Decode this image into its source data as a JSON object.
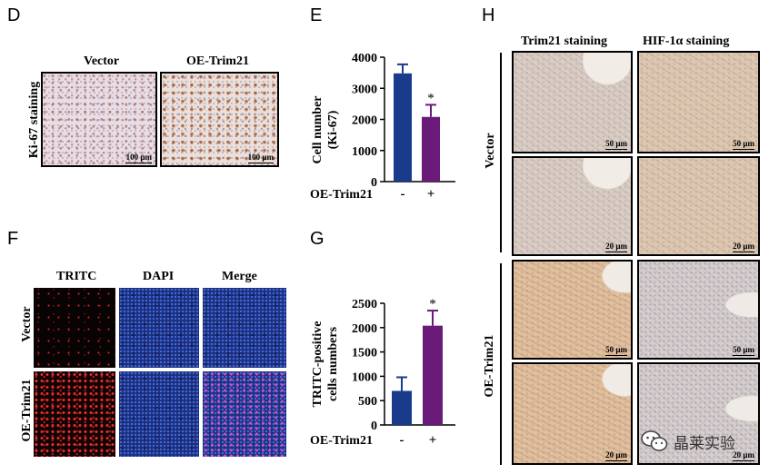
{
  "panels": {
    "D": "D",
    "E": "E",
    "F": "F",
    "G": "G",
    "H": "H"
  },
  "panel_d": {
    "row_label": "Ki-67 staining",
    "columns": [
      "Vector",
      "OE-Trim21"
    ],
    "scale_bar": "100 μm"
  },
  "panel_f": {
    "columns": [
      "TRITC",
      "DAPI",
      "Merge"
    ],
    "rows": [
      "Vector",
      "OE-Trim21"
    ]
  },
  "panel_h": {
    "columns": [
      "Trim21 staining",
      "HIF-1α staining"
    ],
    "groups": [
      "Vector",
      "OE-Trim21"
    ],
    "scale_bars": [
      "50 μm",
      "20 μm",
      "50 μm",
      "20 μm"
    ]
  },
  "watermark": {
    "text": "晶莱实验",
    "icon": "wechat-icon"
  },
  "colors": {
    "vector_bar": "#1a3a8c",
    "oe_bar": "#6a1b7a"
  },
  "chart_data": [
    {
      "id": "E",
      "type": "bar",
      "ylabel": "Cell number (Ki-67)",
      "ylabel_lines": [
        "Cell number",
        "(Ki-67)"
      ],
      "xlabel": "OE-Trim21",
      "categories": [
        "-",
        "+"
      ],
      "values": [
        3480,
        2080
      ],
      "errors": [
        290,
        390
      ],
      "significance": [
        "",
        "*"
      ],
      "ylim": [
        0,
        4000
      ],
      "yticks": [
        "0",
        "1000",
        "2000",
        "3000",
        "4000"
      ]
    },
    {
      "id": "G",
      "type": "bar",
      "ylabel": "TRITC-positive cells numbers",
      "ylabel_lines": [
        "TRITC-positive",
        "cells numbers"
      ],
      "xlabel": "OE-Trim21",
      "categories": [
        "-",
        "+"
      ],
      "values": [
        700,
        2040
      ],
      "errors": [
        280,
        310
      ],
      "significance": [
        "",
        "*"
      ],
      "ylim": [
        0,
        2500
      ],
      "yticks": [
        "0",
        "500",
        "1000",
        "1500",
        "2000",
        "2500"
      ]
    }
  ]
}
